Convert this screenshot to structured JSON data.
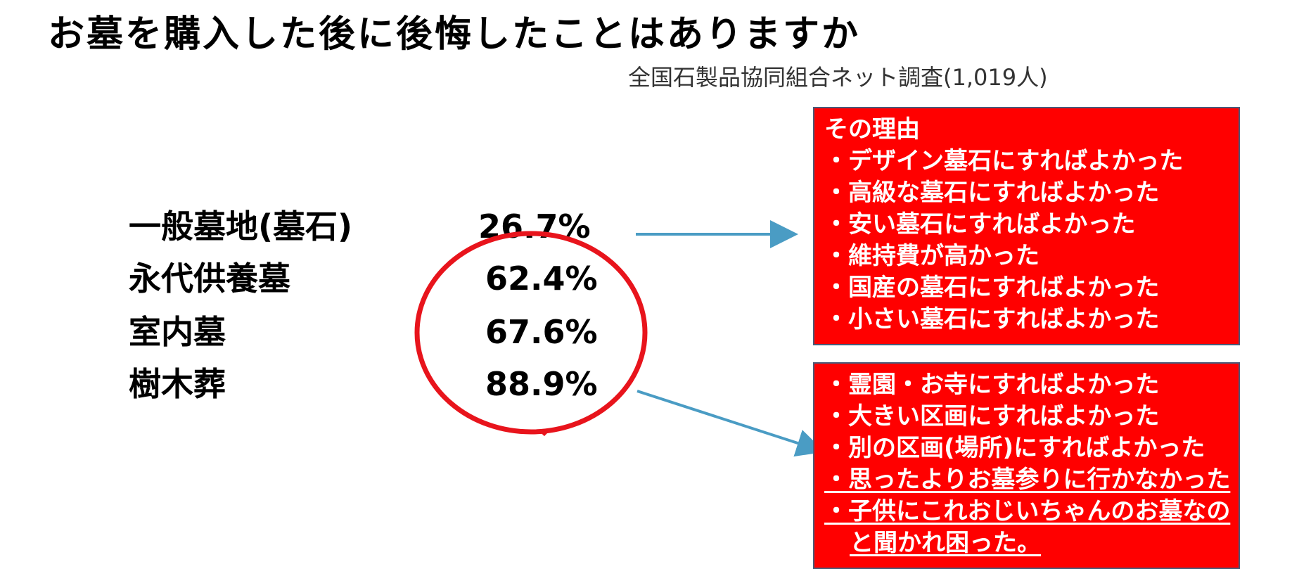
{
  "title": "お墓を購入した後に後悔したことはありますか",
  "subtitle": "全国石製品協同組合ネット調査(1,019人)",
  "rows": [
    {
      "label": "一般墓地(墓石)",
      "value": "26.7%"
    },
    {
      "label": "永代供養墓",
      "value": "62.4%"
    },
    {
      "label": "室内墓",
      "value": "67.6%"
    },
    {
      "label": "樹木葬",
      "value": "88.9%"
    }
  ],
  "reasons_general": {
    "heading": "その理由",
    "items": [
      "・デザイン墓石にすればよかった",
      "・高級な墓石にすればよかった",
      "・安い墓石にすればよかった",
      "・維持費が高かった",
      "・国産の墓石にすればよかった",
      "・小さい墓石にすればよかった"
    ]
  },
  "reasons_other": {
    "items": [
      "・霊園・お寺にすればよかった",
      "・大きい区画にすればよかった",
      "・別の区画(場所)にすればよかった"
    ],
    "underlined_items": [
      "・思ったよりお墓参りに行かなかった",
      "・子供にこれおじいちゃんのお墓なの",
      "と聞かれ困った。"
    ]
  },
  "colors": {
    "box_fill": "#ff0000",
    "box_border": "#4a5a78",
    "arrow": "#4a9cc4",
    "ellipse": "#e8141c"
  }
}
